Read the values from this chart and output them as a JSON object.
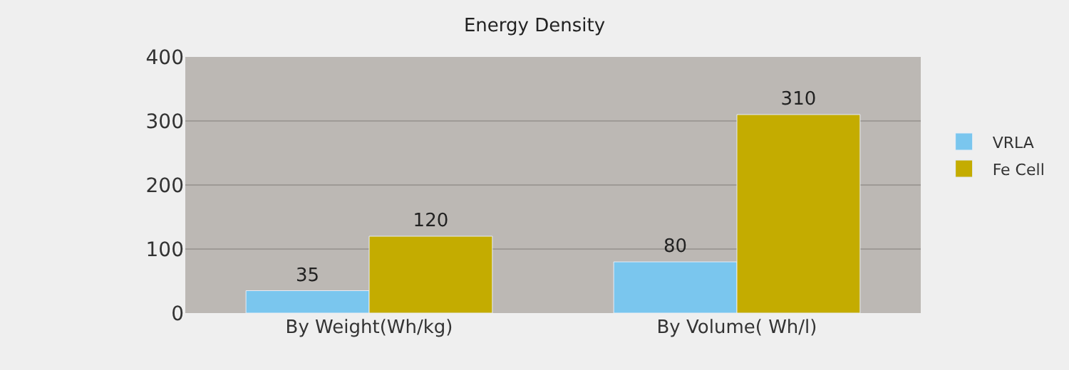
{
  "chart_data": {
    "type": "bar",
    "title": "Energy Density",
    "categories": [
      "By Weight(Wh/kg)",
      "By Volume( Wh/l)"
    ],
    "series": [
      {
        "name": "VRLA",
        "color": "#7ac6ee",
        "values": [
          35,
          80
        ]
      },
      {
        "name": "Fe Cell",
        "color": "#c4ac00",
        "values": [
          120,
          310
        ]
      }
    ],
    "ylim": [
      0,
      400
    ],
    "yticks": [
      0,
      100,
      200,
      300,
      400
    ],
    "grid": "y",
    "legend": "right",
    "data_labels": true
  }
}
